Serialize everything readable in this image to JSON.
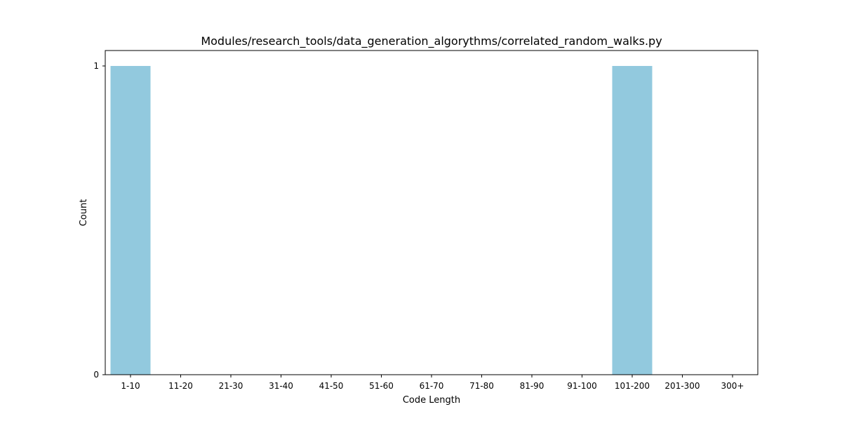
{
  "chart_data": {
    "type": "bar",
    "title": "Modules/research_tools/data_generation_algorythms/correlated_random_walks.py",
    "xlabel": "Code Length",
    "ylabel": "Count",
    "categories": [
      "1-10",
      "11-20",
      "21-30",
      "31-40",
      "41-50",
      "51-60",
      "61-70",
      "71-80",
      "81-90",
      "91-100",
      "101-200",
      "201-300",
      "300+"
    ],
    "values": [
      1,
      0,
      0,
      0,
      0,
      0,
      0,
      0,
      0,
      0,
      1,
      0,
      0
    ],
    "yticks": [
      0,
      1
    ],
    "ylim": [
      0,
      1.05
    ],
    "bar_color": "#92C9DE",
    "grid": false,
    "legend": "none"
  }
}
